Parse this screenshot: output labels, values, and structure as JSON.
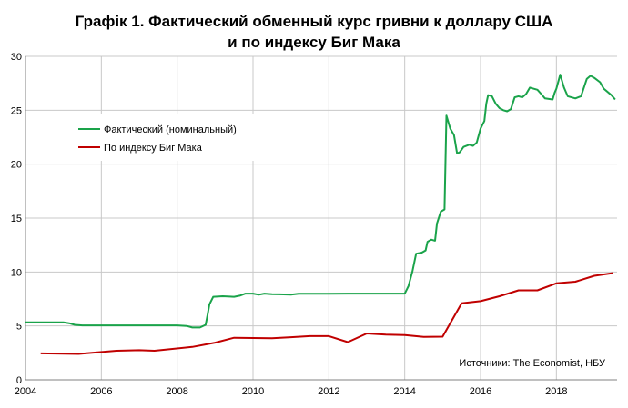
{
  "chart_data": {
    "type": "line",
    "title": [
      "Графік 1. Фактичеcкий обменный курс гривни к доллару США",
      "и по индексу Биг Мака"
    ],
    "xlabel": "",
    "ylabel": "",
    "xlim": [
      2004,
      2019.6
    ],
    "ylim": [
      0,
      30
    ],
    "x_ticks": [
      2004,
      2006,
      2008,
      2010,
      2012,
      2014,
      2016,
      2018
    ],
    "y_ticks": [
      0,
      5,
      10,
      15,
      20,
      25,
      30
    ],
    "grid": "vertical and horizontal",
    "legend_position": "top-left",
    "source": "Источники: The Economist, НБУ",
    "colors": {
      "actual": "#1aa34a",
      "bigmac": "#c00000",
      "grid": "#c8c8c8",
      "axis": "#808080"
    },
    "series": [
      {
        "name": "Фактический (номинальный)",
        "color": "#1aa34a",
        "points": [
          [
            2004.0,
            5.33
          ],
          [
            2005.0,
            5.33
          ],
          [
            2005.15,
            5.25
          ],
          [
            2005.3,
            5.1
          ],
          [
            2005.5,
            5.05
          ],
          [
            2006.0,
            5.05
          ],
          [
            2007.0,
            5.05
          ],
          [
            2008.0,
            5.05
          ],
          [
            2008.25,
            5.0
          ],
          [
            2008.4,
            4.85
          ],
          [
            2008.6,
            4.85
          ],
          [
            2008.75,
            5.1
          ],
          [
            2008.8,
            6.0
          ],
          [
            2008.85,
            7.0
          ],
          [
            2008.95,
            7.7
          ],
          [
            2009.2,
            7.75
          ],
          [
            2009.5,
            7.7
          ],
          [
            2009.65,
            7.8
          ],
          [
            2009.8,
            8.0
          ],
          [
            2010.0,
            8.0
          ],
          [
            2010.15,
            7.9
          ],
          [
            2010.3,
            8.0
          ],
          [
            2010.5,
            7.95
          ],
          [
            2010.7,
            7.93
          ],
          [
            2011.0,
            7.9
          ],
          [
            2011.2,
            7.98
          ],
          [
            2012.0,
            7.99
          ],
          [
            2012.5,
            8.0
          ],
          [
            2013.0,
            8.0
          ],
          [
            2013.5,
            8.0
          ],
          [
            2014.0,
            8.0
          ],
          [
            2014.1,
            8.7
          ],
          [
            2014.2,
            10.0
          ],
          [
            2014.3,
            11.7
          ],
          [
            2014.45,
            11.8
          ],
          [
            2014.55,
            12.0
          ],
          [
            2014.6,
            12.8
          ],
          [
            2014.7,
            13.0
          ],
          [
            2014.8,
            12.9
          ],
          [
            2014.85,
            14.5
          ],
          [
            2014.95,
            15.6
          ],
          [
            2015.05,
            15.8
          ],
          [
            2015.1,
            24.5
          ],
          [
            2015.2,
            23.3
          ],
          [
            2015.3,
            22.7
          ],
          [
            2015.38,
            21.0
          ],
          [
            2015.45,
            21.1
          ],
          [
            2015.55,
            21.6
          ],
          [
            2015.7,
            21.8
          ],
          [
            2015.8,
            21.7
          ],
          [
            2015.9,
            22.0
          ],
          [
            2016.0,
            23.3
          ],
          [
            2016.1,
            24.0
          ],
          [
            2016.15,
            25.6
          ],
          [
            2016.2,
            26.4
          ],
          [
            2016.3,
            26.3
          ],
          [
            2016.4,
            25.6
          ],
          [
            2016.5,
            25.2
          ],
          [
            2016.6,
            25.0
          ],
          [
            2016.7,
            24.9
          ],
          [
            2016.8,
            25.1
          ],
          [
            2016.9,
            26.2
          ],
          [
            2017.0,
            26.3
          ],
          [
            2017.1,
            26.2
          ],
          [
            2017.2,
            26.5
          ],
          [
            2017.3,
            27.1
          ],
          [
            2017.5,
            26.9
          ],
          [
            2017.6,
            26.5
          ],
          [
            2017.7,
            26.1
          ],
          [
            2017.9,
            26.0
          ],
          [
            2017.95,
            26.6
          ],
          [
            2018.0,
            27.0
          ],
          [
            2018.1,
            28.3
          ],
          [
            2018.2,
            27.1
          ],
          [
            2018.3,
            26.3
          ],
          [
            2018.5,
            26.1
          ],
          [
            2018.65,
            26.3
          ],
          [
            2018.8,
            27.9
          ],
          [
            2018.9,
            28.2
          ],
          [
            2019.0,
            28.0
          ],
          [
            2019.15,
            27.6
          ],
          [
            2019.25,
            27.0
          ],
          [
            2019.45,
            26.4
          ],
          [
            2019.55,
            26.0
          ]
        ]
      },
      {
        "name": "По индексу Биг Мака",
        "color": "#c00000",
        "points": [
          [
            2004.4,
            2.45
          ],
          [
            2005.4,
            2.4
          ],
          [
            2006.4,
            2.7
          ],
          [
            2007.0,
            2.75
          ],
          [
            2007.4,
            2.7
          ],
          [
            2008.4,
            3.05
          ],
          [
            2009.0,
            3.45
          ],
          [
            2009.5,
            3.9
          ],
          [
            2010.5,
            3.85
          ],
          [
            2011.0,
            3.95
          ],
          [
            2011.5,
            4.05
          ],
          [
            2012.0,
            4.05
          ],
          [
            2012.5,
            3.5
          ],
          [
            2013.0,
            4.3
          ],
          [
            2013.5,
            4.2
          ],
          [
            2014.0,
            4.15
          ],
          [
            2014.5,
            3.98
          ],
          [
            2015.0,
            4.0
          ],
          [
            2015.5,
            7.1
          ],
          [
            2016.0,
            7.3
          ],
          [
            2016.5,
            7.75
          ],
          [
            2017.0,
            8.3
          ],
          [
            2017.5,
            8.3
          ],
          [
            2018.0,
            8.95
          ],
          [
            2018.5,
            9.1
          ],
          [
            2019.0,
            9.65
          ],
          [
            2019.5,
            9.9
          ]
        ]
      }
    ]
  }
}
